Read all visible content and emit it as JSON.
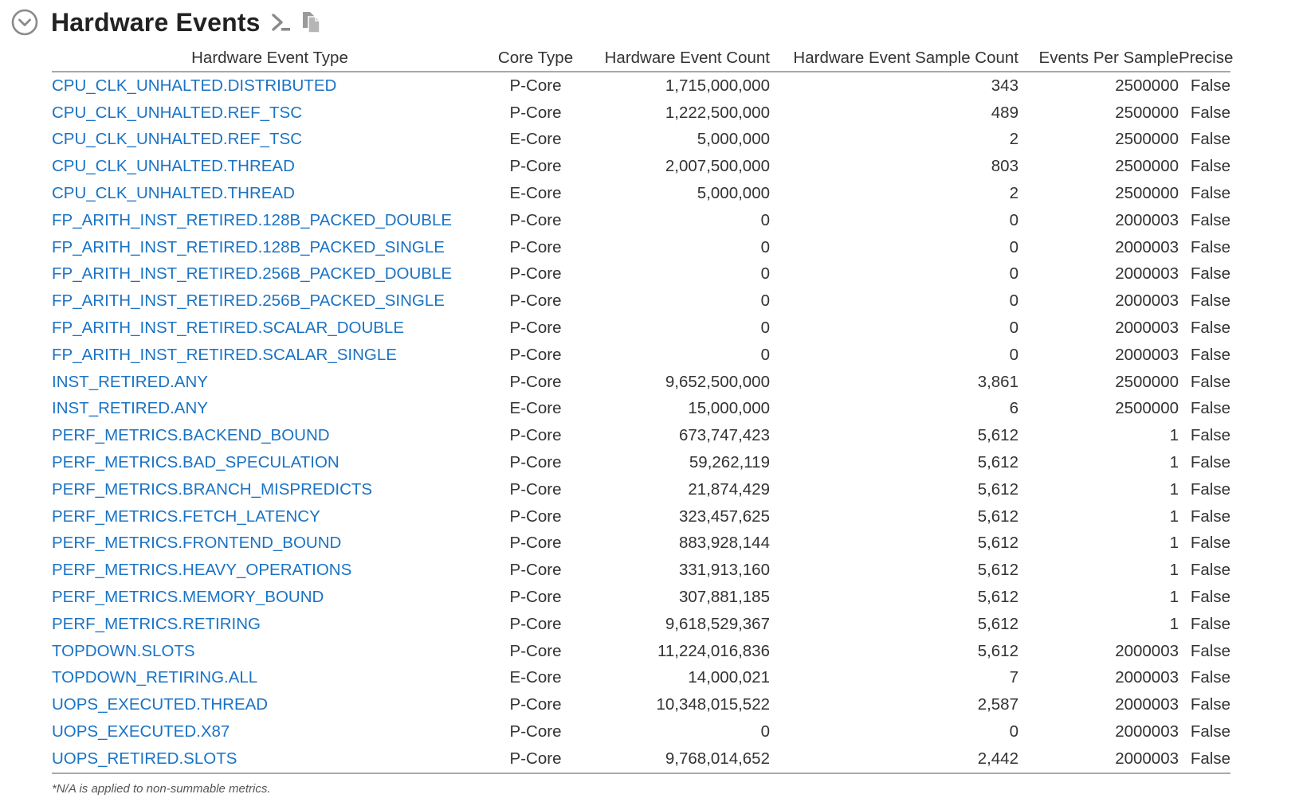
{
  "section": {
    "title": "Hardware Events",
    "footnote": "*N/A is applied to non-summable metrics."
  },
  "colors": {
    "link": "#1a73c5",
    "text": "#333333",
    "rule": "#a9a9a9",
    "icon": "#8a8a8a"
  },
  "table": {
    "columns": [
      "Hardware Event Type",
      "Core Type",
      "Hardware Event Count",
      "Hardware Event Sample Count",
      "Events Per Sample",
      "Precise"
    ],
    "rows": [
      {
        "event": "CPU_CLK_UNHALTED.DISTRIBUTED",
        "core": "P-Core",
        "count": "1,715,000,000",
        "samples": "343",
        "eps": "2500000",
        "precise": "False"
      },
      {
        "event": "CPU_CLK_UNHALTED.REF_TSC",
        "core": "P-Core",
        "count": "1,222,500,000",
        "samples": "489",
        "eps": "2500000",
        "precise": "False"
      },
      {
        "event": "CPU_CLK_UNHALTED.REF_TSC",
        "core": "E-Core",
        "count": "5,000,000",
        "samples": "2",
        "eps": "2500000",
        "precise": "False"
      },
      {
        "event": "CPU_CLK_UNHALTED.THREAD",
        "core": "P-Core",
        "count": "2,007,500,000",
        "samples": "803",
        "eps": "2500000",
        "precise": "False"
      },
      {
        "event": "CPU_CLK_UNHALTED.THREAD",
        "core": "E-Core",
        "count": "5,000,000",
        "samples": "2",
        "eps": "2500000",
        "precise": "False"
      },
      {
        "event": "FP_ARITH_INST_RETIRED.128B_PACKED_DOUBLE",
        "core": "P-Core",
        "count": "0",
        "samples": "0",
        "eps": "2000003",
        "precise": "False"
      },
      {
        "event": "FP_ARITH_INST_RETIRED.128B_PACKED_SINGLE",
        "core": "P-Core",
        "count": "0",
        "samples": "0",
        "eps": "2000003",
        "precise": "False"
      },
      {
        "event": "FP_ARITH_INST_RETIRED.256B_PACKED_DOUBLE",
        "core": "P-Core",
        "count": "0",
        "samples": "0",
        "eps": "2000003",
        "precise": "False"
      },
      {
        "event": "FP_ARITH_INST_RETIRED.256B_PACKED_SINGLE",
        "core": "P-Core",
        "count": "0",
        "samples": "0",
        "eps": "2000003",
        "precise": "False"
      },
      {
        "event": "FP_ARITH_INST_RETIRED.SCALAR_DOUBLE",
        "core": "P-Core",
        "count": "0",
        "samples": "0",
        "eps": "2000003",
        "precise": "False"
      },
      {
        "event": "FP_ARITH_INST_RETIRED.SCALAR_SINGLE",
        "core": "P-Core",
        "count": "0",
        "samples": "0",
        "eps": "2000003",
        "precise": "False"
      },
      {
        "event": "INST_RETIRED.ANY",
        "core": "P-Core",
        "count": "9,652,500,000",
        "samples": "3,861",
        "eps": "2500000",
        "precise": "False"
      },
      {
        "event": "INST_RETIRED.ANY",
        "core": "E-Core",
        "count": "15,000,000",
        "samples": "6",
        "eps": "2500000",
        "precise": "False"
      },
      {
        "event": "PERF_METRICS.BACKEND_BOUND",
        "core": "P-Core",
        "count": "673,747,423",
        "samples": "5,612",
        "eps": "1",
        "precise": "False"
      },
      {
        "event": "PERF_METRICS.BAD_SPECULATION",
        "core": "P-Core",
        "count": "59,262,119",
        "samples": "5,612",
        "eps": "1",
        "precise": "False"
      },
      {
        "event": "PERF_METRICS.BRANCH_MISPREDICTS",
        "core": "P-Core",
        "count": "21,874,429",
        "samples": "5,612",
        "eps": "1",
        "precise": "False"
      },
      {
        "event": "PERF_METRICS.FETCH_LATENCY",
        "core": "P-Core",
        "count": "323,457,625",
        "samples": "5,612",
        "eps": "1",
        "precise": "False"
      },
      {
        "event": "PERF_METRICS.FRONTEND_BOUND",
        "core": "P-Core",
        "count": "883,928,144",
        "samples": "5,612",
        "eps": "1",
        "precise": "False"
      },
      {
        "event": "PERF_METRICS.HEAVY_OPERATIONS",
        "core": "P-Core",
        "count": "331,913,160",
        "samples": "5,612",
        "eps": "1",
        "precise": "False"
      },
      {
        "event": "PERF_METRICS.MEMORY_BOUND",
        "core": "P-Core",
        "count": "307,881,185",
        "samples": "5,612",
        "eps": "1",
        "precise": "False"
      },
      {
        "event": "PERF_METRICS.RETIRING",
        "core": "P-Core",
        "count": "9,618,529,367",
        "samples": "5,612",
        "eps": "1",
        "precise": "False"
      },
      {
        "event": "TOPDOWN.SLOTS",
        "core": "P-Core",
        "count": "11,224,016,836",
        "samples": "5,612",
        "eps": "2000003",
        "precise": "False"
      },
      {
        "event": "TOPDOWN_RETIRING.ALL",
        "core": "E-Core",
        "count": "14,000,021",
        "samples": "7",
        "eps": "2000003",
        "precise": "False"
      },
      {
        "event": "UOPS_EXECUTED.THREAD",
        "core": "P-Core",
        "count": "10,348,015,522",
        "samples": "2,587",
        "eps": "2000003",
        "precise": "False"
      },
      {
        "event": "UOPS_EXECUTED.X87",
        "core": "P-Core",
        "count": "0",
        "samples": "0",
        "eps": "2000003",
        "precise": "False"
      },
      {
        "event": "UOPS_RETIRED.SLOTS",
        "core": "P-Core",
        "count": "9,768,014,652",
        "samples": "2,442",
        "eps": "2000003",
        "precise": "False"
      }
    ]
  }
}
